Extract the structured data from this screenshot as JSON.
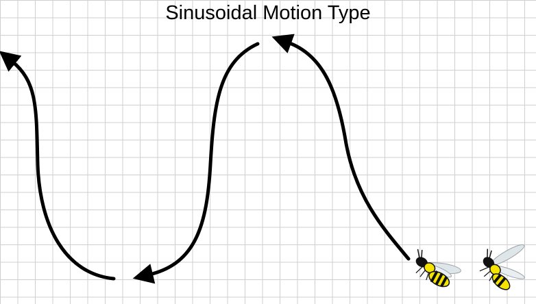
{
  "diagram": {
    "title": "Sinusoidal Motion Type",
    "colors": {
      "path": "#000000",
      "grid": "#cfcfcf",
      "wasp_yellow": "#f5e400",
      "wasp_black": "#111111",
      "wing": "#dfe6ea"
    },
    "icons": [
      "wasp-icon",
      "wasp-icon"
    ]
  }
}
